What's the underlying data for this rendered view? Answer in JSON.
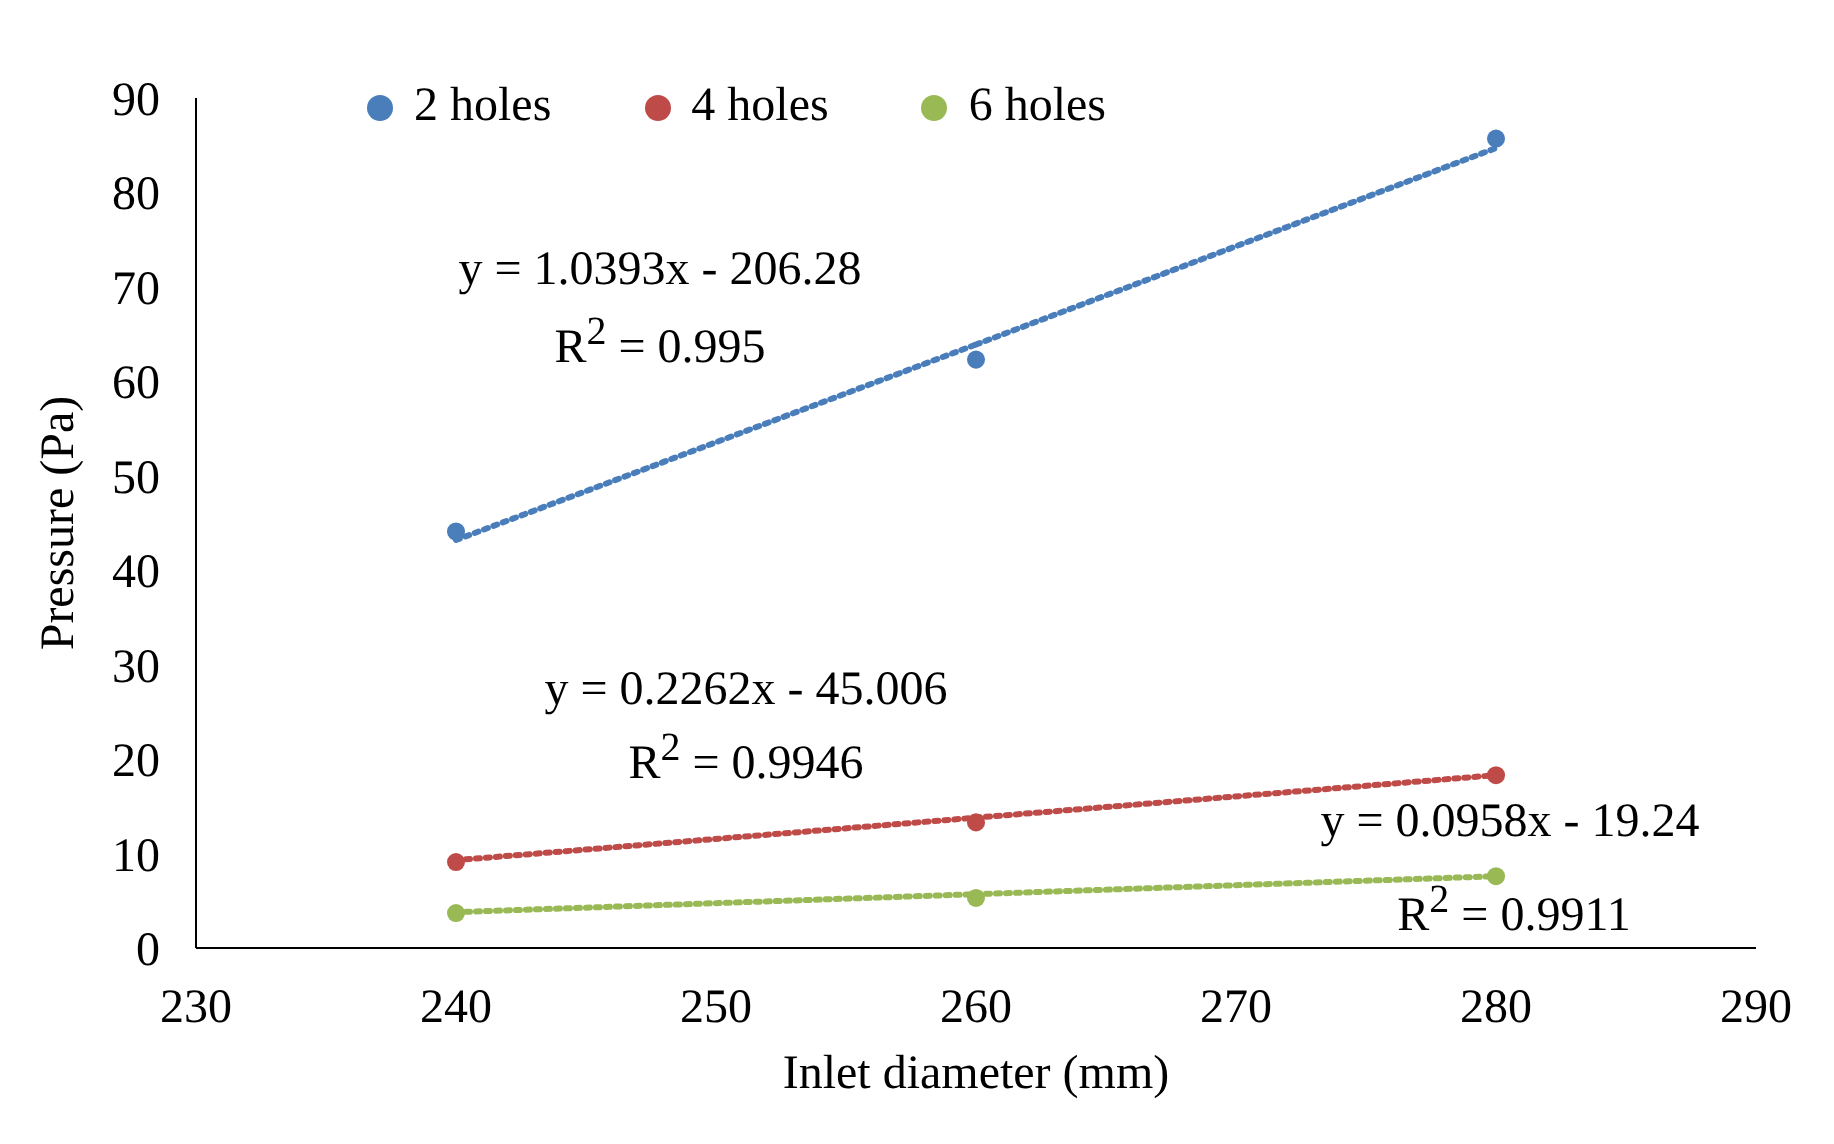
{
  "chart_data": {
    "type": "scatter",
    "xlabel": "Inlet diameter (mm)",
    "ylabel": "Pressure (Pa)",
    "x": [
      240,
      260,
      280
    ],
    "xlim": [
      230,
      290
    ],
    "xticks": [
      230,
      240,
      250,
      260,
      270,
      280,
      290
    ],
    "ylim": [
      0,
      90
    ],
    "yticks": [
      0,
      10,
      20,
      30,
      40,
      50,
      60,
      70,
      80,
      90
    ],
    "grid": false,
    "legend": "top left",
    "marker": "circle",
    "series": [
      {
        "name": "2 holes",
        "color": "#4a7ebb",
        "values": [
          44.1,
          62.3,
          85.7
        ]
      },
      {
        "name": "4 holes",
        "color": "#be4b48",
        "values": [
          9.1,
          13.3,
          18.3
        ]
      },
      {
        "name": "6 holes",
        "color": "#98b954",
        "values": [
          3.7,
          5.3,
          7.6
        ]
      },
      {
        "type": "line",
        "marker": "none",
        "line_style": "dotted",
        "color": "#4a7ebb",
        "values": [
          43.2,
          63.9,
          84.7
        ]
      },
      {
        "type": "line",
        "marker": "none",
        "line_style": "dotted",
        "color": "#be4b48",
        "values": [
          9.3,
          13.8,
          18.3
        ]
      },
      {
        "type": "line",
        "marker": "none",
        "line_style": "dotted",
        "color": "#98b954",
        "values": [
          3.8,
          5.7,
          7.6
        ]
      }
    ],
    "annotations": [
      "y = 1.0393x - 206.28",
      "R$^{2}$ = 0.995",
      "y = 0.2262x - 45.006",
      "R$^{2}$ = 0.9946",
      "y = 0.0958x - 19.24",
      "R$^{2}$ = 0.9911"
    ]
  }
}
